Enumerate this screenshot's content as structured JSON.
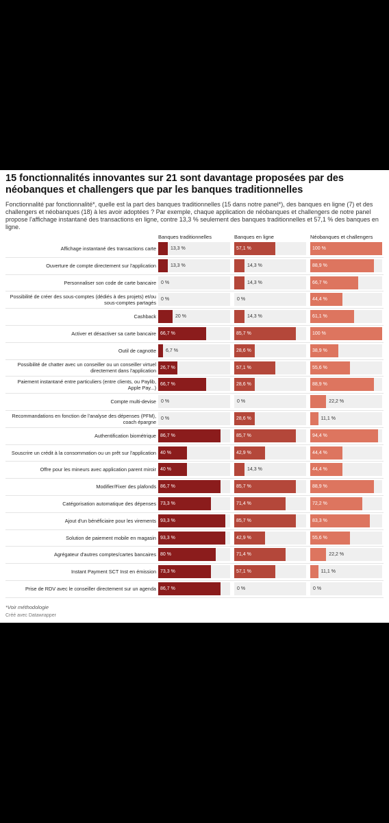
{
  "chart_data": {
    "type": "split-bar",
    "title": "15 fonctionnalités innovantes sur 21 sont davantage proposées par des néobanques et challengers que par les banques traditionnelles",
    "subtitle": "Fonctionnalité par fonctionnalité*, quelle est la part des banques traditionnelles (15 dans notre panel*), des banques en ligne (7) et des challengers et néobanques (18) à les avoir adoptées ? Par exemple, chaque application de néobanques et challengers de notre panel propose l'affichage instantané des transactions en ligne, contre 13,3 % seulement des banques traditionnelles et 57,1 % des banques en ligne.",
    "note": "*Voir méthodologie",
    "credit": "Créé avec Datawrapper",
    "xlim": [
      0,
      100
    ],
    "categories": [
      "Affichage instantané des transactions carte",
      "Ouverture de compte directement sur l'application",
      "Personnaliser son code de carte bancaire",
      "Possibilité de créer des sous-comptes (dédiés à des projets) et/ou sous-comptes partagés",
      "Cashback",
      "Activer et désactiver sa carte bancaire",
      "Outil de cagnotte",
      "Possibilité de chatter avec un conseiller ou un conseiller virtuel directement dans l'application",
      "Paiement instantané entre particuliers (entre clients, ou Paylib, Apple Pay...)",
      "Compte multi-devise",
      "Recommandations en fonction de l'analyse des dépenses (PFM), coach épargne",
      "Authentification biométrique",
      "Souscrire un crédit à la consommation ou un prêt sur l'application",
      "Offre pour les mineurs avec application parent miroir",
      "Modifier/Fixer des plafonds",
      "Catégorisation automatique des dépenses",
      "Ajout d'un bénéficiaire pour les virements",
      "Solution de paiement mobile en magasin",
      "Agrégateur d'autres comptes/cartes bancaires",
      "Instant Payment SCT Inst en émission",
      "Prise de RDV avec le conseiller directement sur un agenda"
    ],
    "series": [
      {
        "name": "Banques traditionnelles",
        "color": "#8b1c1c",
        "values": [
          13.3,
          13.3,
          0,
          0,
          20,
          66.7,
          6.7,
          26.7,
          66.7,
          0,
          0,
          86.7,
          40,
          40,
          86.7,
          73.3,
          93.3,
          93.3,
          80,
          73.3,
          86.7
        ],
        "value_labels": [
          "13,3 %",
          "13,3 %",
          "0 %",
          "0 %",
          "20 %",
          "66,7 %",
          "6,7 %",
          "26,7 %",
          "66,7 %",
          "0 %",
          "0 %",
          "86,7 %",
          "40 %",
          "40 %",
          "86,7 %",
          "73,3 %",
          "93,3 %",
          "93,3 %",
          "80 %",
          "73,3 %",
          "86,7 %"
        ]
      },
      {
        "name": "Banques en ligne",
        "color": "#b4473a",
        "values": [
          57.1,
          14.3,
          14.3,
          0,
          14.3,
          85.7,
          28.6,
          57.1,
          28.6,
          0,
          28.6,
          85.7,
          42.9,
          14.3,
          85.7,
          71.4,
          85.7,
          42.9,
          71.4,
          57.1,
          0
        ],
        "value_labels": [
          "57,1 %",
          "14,3 %",
          "14,3 %",
          "0 %",
          "14,3 %",
          "85,7 %",
          "28,6 %",
          "57,1 %",
          "28,6 %",
          "0 %",
          "28,6 %",
          "85,7 %",
          "42,9 %",
          "14,3 %",
          "85,7 %",
          "71,4 %",
          "85,7 %",
          "42,9 %",
          "71,4 %",
          "57,1 %",
          "0 %"
        ]
      },
      {
        "name": "Néobanques et challengers",
        "color": "#dd755f",
        "values": [
          100,
          88.9,
          66.7,
          44.4,
          61.1,
          100,
          38.9,
          55.6,
          88.9,
          22.2,
          11.1,
          94.4,
          44.4,
          44.4,
          88.9,
          72.2,
          83.3,
          55.6,
          22.2,
          11.1,
          0
        ],
        "value_labels": [
          "100 %",
          "88,9 %",
          "66,7 %",
          "44,4 %",
          "61,1 %",
          "100 %",
          "38,9 %",
          "55,6 %",
          "88,9 %",
          "22,2 %",
          "11,1 %",
          "94,4 %",
          "44,4 %",
          "44,4 %",
          "88,9 %",
          "72,2 %",
          "83,3 %",
          "55,6 %",
          "22,2 %",
          "11,1 %",
          "0 %"
        ]
      }
    ]
  }
}
